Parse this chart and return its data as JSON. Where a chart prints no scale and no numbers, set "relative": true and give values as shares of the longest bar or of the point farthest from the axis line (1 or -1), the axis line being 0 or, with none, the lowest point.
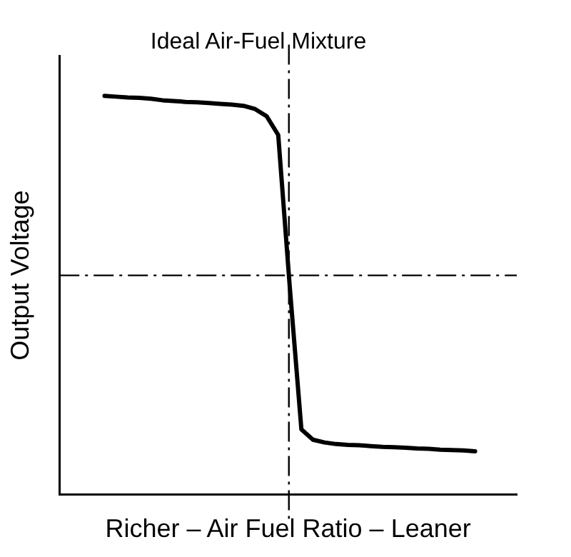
{
  "chart_data": {
    "type": "line",
    "relative": true,
    "xlabel": "Richer – Air Fuel Ratio – Leaner",
    "ylabel": "Output Voltage",
    "categories": [
      null,
      null,
      null,
      null,
      null,
      null,
      null,
      null,
      null,
      null,
      null,
      null,
      null,
      null,
      null,
      null,
      null,
      null,
      null,
      null,
      null,
      null,
      null,
      null,
      null,
      null,
      null,
      null,
      null,
      null,
      null,
      null,
      null
    ],
    "series": [
      {
        "color": "#000000",
        "values": [
          1.0,
          0.998,
          0.996,
          0.995,
          0.993,
          0.989,
          0.987,
          0.985,
          0.984,
          0.982,
          0.98,
          0.978,
          0.975,
          0.967,
          0.949,
          0.902,
          0.52,
          0.164,
          0.138,
          0.131,
          0.127,
          0.125,
          0.124,
          0.122,
          0.12,
          0.119,
          0.118,
          0.116,
          0.115,
          0.113,
          0.112,
          0.111,
          0.109
        ]
      }
    ],
    "title": "Ideal Air-Fuel Mixture",
    "ref_lines": [
      {
        "axis": "y",
        "value": 0.55,
        "line_style": "dashdot",
        "color": "#000000"
      }
    ],
    "grid": false,
    "legend": false,
    "marker": "none",
    "line_style": "solid"
  }
}
